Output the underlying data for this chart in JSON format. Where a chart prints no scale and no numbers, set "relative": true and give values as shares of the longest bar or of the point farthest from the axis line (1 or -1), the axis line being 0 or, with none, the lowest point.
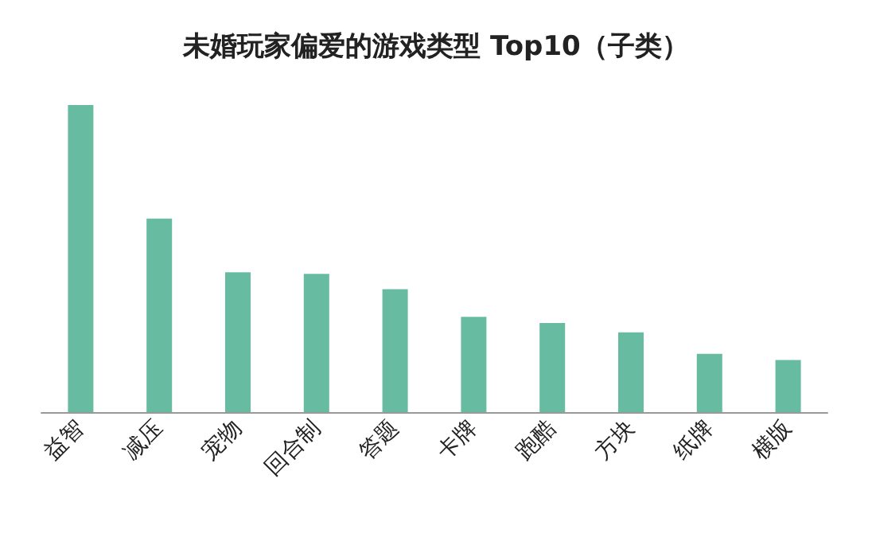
{
  "chart_data": {
    "type": "bar",
    "title": "未婚玩家偏爱的游戏类型 Top10（子类）",
    "relative": true,
    "categories": [
      "益智",
      "减压",
      "宠物",
      "回合制",
      "答题",
      "卡牌",
      "跑酷",
      "方块",
      "纸牌",
      "横版"
    ],
    "values": [
      1,
      0.63,
      0.455,
      0.45,
      0.4,
      0.31,
      0.29,
      0.26,
      0.19,
      0.17
    ],
    "color": "#66bba1"
  }
}
